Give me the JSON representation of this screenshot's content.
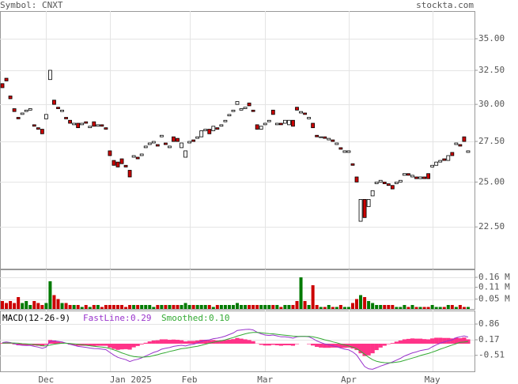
{
  "header": {
    "symbol": "Symbol: CNXT",
    "site": "stockta.com"
  },
  "chart_data": [
    {
      "type": "candlestick",
      "log_scale": true,
      "grid": true,
      "up_color": "#ffffff",
      "down_color": "#cc0000",
      "xlim": [
        -0.6,
        118.6
      ],
      "ylim": [
        20.4,
        37.35
      ],
      "yticks": [
        {
          "value": 35,
          "label": "35.00"
        },
        {
          "value": 32.5,
          "label": "32.50"
        },
        {
          "value": 30,
          "label": "30.00"
        },
        {
          "value": 27.5,
          "label": "27.50"
        },
        {
          "value": 25,
          "label": "25.00"
        },
        {
          "value": 22.5,
          "label": "22.50"
        }
      ],
      "open": [
        31.5,
        31.9,
        30.6,
        29.7,
        29.1,
        29.3,
        29.5,
        29.6,
        28.6,
        28.4,
        28.3,
        29.0,
        31.8,
        30.3,
        29.8,
        29.5,
        29.1,
        28.9,
        28.6,
        28.7,
        28.6,
        28.8,
        28.4,
        28.8,
        28.5,
        28.6,
        28.4,
        26.9,
        26.3,
        26.2,
        26.4,
        26.0,
        25.7,
        26.5,
        26.5,
        26.6,
        27.1,
        27.3,
        27.4,
        27.3,
        27.8,
        27.4,
        27.1,
        27.8,
        27.7,
        27.1,
        26.5,
        27.4,
        27.6,
        27.7,
        27.8,
        28.2,
        28.3,
        28.2,
        28.4,
        28.5,
        28.8,
        29.2,
        29.5,
        30.0,
        29.6,
        29.7,
        30.1,
        29.6,
        28.6,
        28.3,
        28.6,
        28.8,
        29.6,
        28.6,
        28.7,
        28.7,
        28.6,
        28.9,
        29.8,
        29.4,
        29.4,
        29.0,
        28.7,
        27.9,
        27.8,
        27.8,
        27.6,
        27.6,
        27.3,
        27.1,
        26.8,
        26.8,
        26.1,
        25.3,
        22.8,
        24.0,
        23.6,
        24.2,
        24.9,
        25.0,
        25.0,
        24.9,
        24.8,
        24.9,
        25.0,
        25.4,
        25.5,
        25.3,
        25.3,
        25.2,
        25.3,
        25.5,
        25.9,
        26.0,
        26.2,
        26.4,
        26.3,
        26.8,
        27.3,
        27.3,
        27.8,
        26.8
      ],
      "close": [
        31.2,
        31.7,
        30.4,
        29.5,
        29.0,
        29.4,
        29.6,
        29.7,
        28.5,
        28.3,
        28.0,
        29.3,
        32.5,
        30.0,
        29.7,
        29.6,
        29.0,
        28.7,
        28.7,
        28.4,
        28.7,
        28.7,
        28.5,
        28.5,
        28.6,
        28.5,
        28.3,
        26.6,
        26.0,
        25.9,
        26.1,
        25.9,
        25.3,
        26.6,
        26.4,
        26.7,
        27.2,
        27.4,
        27.5,
        27.2,
        27.9,
        27.3,
        27.2,
        27.5,
        27.5,
        27.4,
        26.9,
        27.5,
        27.5,
        27.8,
        28.2,
        28.3,
        28.0,
        28.5,
        28.3,
        28.6,
        28.9,
        29.3,
        29.6,
        30.2,
        29.7,
        29.8,
        29.9,
        29.5,
        28.3,
        28.5,
        28.7,
        28.9,
        29.3,
        28.7,
        28.6,
        28.9,
        28.9,
        28.5,
        29.6,
        29.5,
        29.3,
        29.1,
        28.4,
        27.8,
        27.8,
        27.7,
        27.7,
        27.5,
        27.4,
        27.0,
        26.9,
        26.9,
        26.0,
        25.0,
        24.0,
        23.0,
        24.0,
        24.5,
        25.0,
        25.1,
        24.9,
        24.8,
        24.6,
        25.0,
        25.1,
        25.5,
        25.4,
        25.4,
        25.2,
        25.3,
        25.2,
        25.2,
        26.0,
        26.2,
        26.3,
        26.3,
        26.6,
        26.6,
        27.4,
        27.2,
        27.5,
        26.9
      ]
    },
    {
      "type": "volume",
      "grid": true,
      "up_color": "#007a00",
      "down_color": "#cc0000",
      "xlim": [
        -0.6,
        118.6
      ],
      "ylim": [
        0,
        0.2
      ],
      "yticks": [
        {
          "value": 0.16,
          "label": "0.16 M"
        },
        {
          "value": 0.11,
          "label": "0.11 M"
        },
        {
          "value": 0.05,
          "label": "0.05 M"
        }
      ],
      "values": [
        0.04,
        0.03,
        0.04,
        0.03,
        0.06,
        0.03,
        0.04,
        0.02,
        0.04,
        0.03,
        0.02,
        0.03,
        0.14,
        0.07,
        0.05,
        0.03,
        0.03,
        0.02,
        0.02,
        0.02,
        0.01,
        0.02,
        0.01,
        0.02,
        0.02,
        0.01,
        0.02,
        0.02,
        0.02,
        0.02,
        0.02,
        0.01,
        0.02,
        0.02,
        0.02,
        0.02,
        0.02,
        0.02,
        0.01,
        0.02,
        0.02,
        0.02,
        0.02,
        0.02,
        0.02,
        0.02,
        0.03,
        0.02,
        0.02,
        0.02,
        0.02,
        0.02,
        0.02,
        0.01,
        0.02,
        0.02,
        0.02,
        0.02,
        0.02,
        0.03,
        0.02,
        0.02,
        0.02,
        0.02,
        0.02,
        0.02,
        0.02,
        0.02,
        0.02,
        0.02,
        0.01,
        0.02,
        0.02,
        0.02,
        0.04,
        0.16,
        0.04,
        0.02,
        0.12,
        0.02,
        0.01,
        0.01,
        0.02,
        0.01,
        0.01,
        0.02,
        0.01,
        0.01,
        0.03,
        0.05,
        0.07,
        0.06,
        0.04,
        0.03,
        0.02,
        0.02,
        0.02,
        0.02,
        0.02,
        0.01,
        0.01,
        0.02,
        0.01,
        0.02,
        0.01,
        0.01,
        0.01,
        0.01,
        0.02,
        0.01,
        0.01,
        0.01,
        0.02,
        0.02,
        0.01,
        0.02,
        0.01,
        0.01
      ]
    },
    {
      "type": "macd",
      "title": "MACD(12-26-9)",
      "grid": true,
      "hist_color": "#ff3388",
      "xlim": [
        -0.6,
        118.6
      ],
      "ylim": [
        -1.21,
        1.45
      ],
      "yticks": [
        0.86,
        0.17,
        -0.51
      ],
      "xticks": [
        {
          "value": 11,
          "label": "Dec"
        },
        {
          "value": 27,
          "label": "Jan 2025"
        },
        {
          "value": 47,
          "label": "Feb"
        },
        {
          "value": 66,
          "label": "Mar"
        },
        {
          "value": 87,
          "label": "Apr"
        },
        {
          "value": 108,
          "label": "May"
        }
      ],
      "legend": {
        "fast_name": "FastLine:",
        "fast_value": 0.29,
        "smooth_name": "Smoothed:",
        "smooth_value": {
          "value": 0.1,
          "label": "0.10"
        }
      },
      "series": [
        {
          "name": "FastLine",
          "color": "#9933cc",
          "values": [
            0.05,
            0.08,
            0.05,
            0.0,
            -0.05,
            -0.07,
            -0.08,
            -0.08,
            -0.12,
            -0.15,
            -0.2,
            -0.15,
            0.1,
            0.12,
            0.1,
            0.08,
            0.02,
            -0.03,
            -0.07,
            -0.12,
            -0.14,
            -0.16,
            -0.19,
            -0.21,
            -0.22,
            -0.24,
            -0.26,
            -0.38,
            -0.5,
            -0.6,
            -0.65,
            -0.7,
            -0.78,
            -0.72,
            -0.68,
            -0.62,
            -0.54,
            -0.46,
            -0.38,
            -0.33,
            -0.24,
            -0.2,
            -0.17,
            -0.12,
            -0.09,
            -0.07,
            -0.1,
            -0.05,
            -0.02,
            0.03,
            0.1,
            0.15,
            0.17,
            0.22,
            0.24,
            0.28,
            0.33,
            0.4,
            0.47,
            0.58,
            0.6,
            0.62,
            0.63,
            0.6,
            0.5,
            0.43,
            0.38,
            0.36,
            0.38,
            0.34,
            0.3,
            0.3,
            0.28,
            0.24,
            0.3,
            0.32,
            0.32,
            0.3,
            0.22,
            0.12,
            0.05,
            -0.01,
            -0.05,
            -0.09,
            -0.13,
            -0.19,
            -0.24,
            -0.27,
            -0.36,
            -0.5,
            -0.75,
            -1.0,
            -1.1,
            -1.12,
            -1.05,
            -0.98,
            -0.92,
            -0.86,
            -0.8,
            -0.72,
            -0.64,
            -0.54,
            -0.47,
            -0.4,
            -0.36,
            -0.3,
            -0.27,
            -0.24,
            -0.14,
            -0.05,
            0.02,
            0.07,
            0.13,
            0.17,
            0.26,
            0.3,
            0.34,
            0.29
          ]
        },
        {
          "name": "Smoothed",
          "color": "#33aa33",
          "values": [
            0.02,
            0.03,
            0.03,
            0.03,
            0.02,
            0.0,
            -0.01,
            -0.02,
            -0.04,
            -0.06,
            -0.09,
            -0.1,
            -0.06,
            -0.02,
            0.0,
            0.02,
            0.02,
            0.01,
            -0.01,
            -0.03,
            -0.05,
            -0.07,
            -0.09,
            -0.11,
            -0.13,
            -0.15,
            -0.17,
            -0.21,
            -0.27,
            -0.33,
            -0.4,
            -0.46,
            -0.52,
            -0.56,
            -0.58,
            -0.59,
            -0.58,
            -0.56,
            -0.52,
            -0.48,
            -0.43,
            -0.39,
            -0.34,
            -0.3,
            -0.26,
            -0.22,
            -0.2,
            -0.17,
            -0.14,
            -0.11,
            -0.07,
            -0.02,
            0.02,
            0.06,
            0.1,
            0.13,
            0.17,
            0.22,
            0.27,
            0.33,
            0.38,
            0.43,
            0.47,
            0.49,
            0.49,
            0.48,
            0.46,
            0.44,
            0.43,
            0.41,
            0.39,
            0.37,
            0.35,
            0.33,
            0.32,
            0.32,
            0.32,
            0.32,
            0.3,
            0.26,
            0.22,
            0.17,
            0.13,
            0.08,
            0.04,
            -0.01,
            -0.06,
            -0.1,
            -0.15,
            -0.22,
            -0.33,
            -0.46,
            -0.59,
            -0.7,
            -0.77,
            -0.81,
            -0.83,
            -0.84,
            -0.83,
            -0.81,
            -0.78,
            -0.73,
            -0.68,
            -0.63,
            -0.58,
            -0.52,
            -0.47,
            -0.43,
            -0.37,
            -0.31,
            -0.24,
            -0.18,
            -0.12,
            -0.06,
            0.0,
            0.06,
            0.07,
            0.1
          ]
        }
      ]
    }
  ]
}
